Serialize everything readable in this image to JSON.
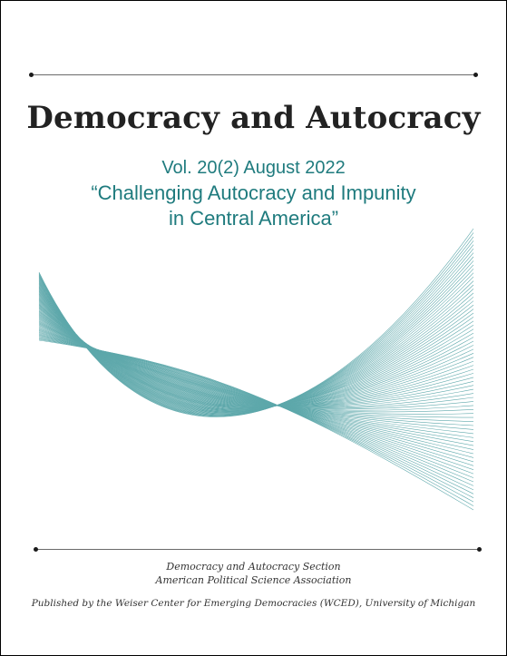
{
  "cover": {
    "title": "Democracy and Autocracy",
    "volume_line": "Vol. 20(2) August 2022",
    "issue_title_line1": "“Challenging Autocracy and Impunity",
    "issue_title_line2": "in Central America”"
  },
  "footer": {
    "section_line": "Democracy and Autocracy Section",
    "association_line": "American Political Science Association",
    "publisher_line": "Published by the Weiser Center for Emerging Democracies (WCED), University of Michigan"
  },
  "colors": {
    "accent_teal": "#1f7b7e",
    "wave_teal": "#5ea8ab",
    "rule_gray": "#6b6b6b"
  }
}
